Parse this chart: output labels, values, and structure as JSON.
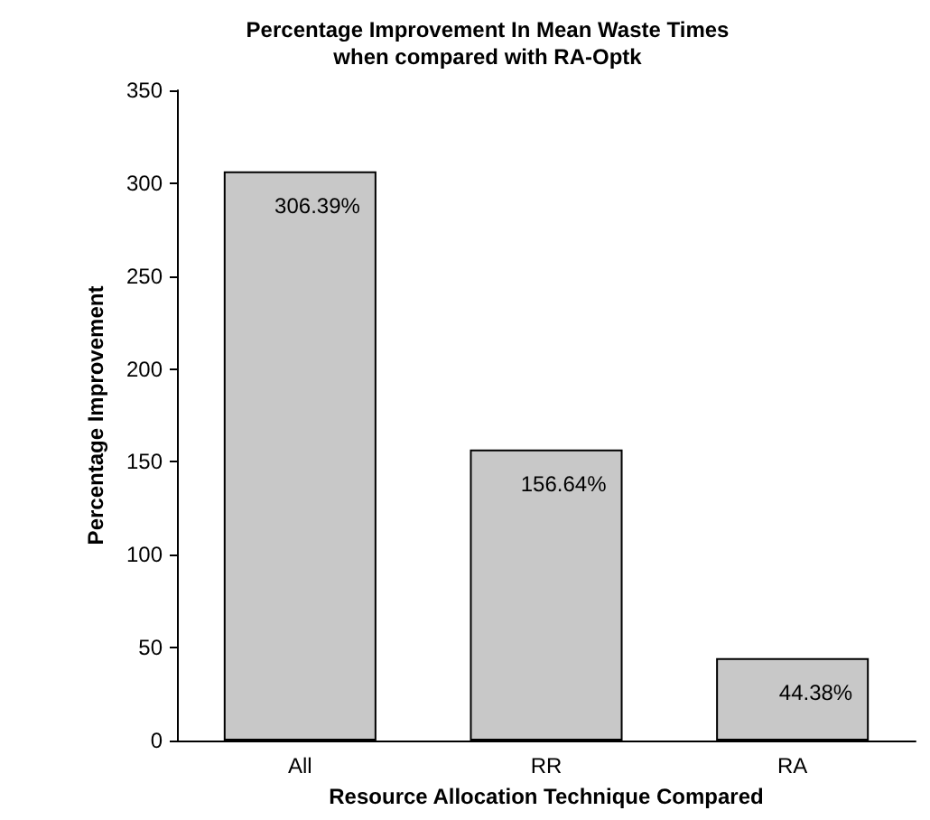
{
  "chart_data": {
    "type": "bar",
    "title": "Percentage Improvement In Mean Waste Times\nwhen compared with RA-Optk",
    "xlabel": "Resource Allocation Technique Compared",
    "ylabel": "Percentage Improvement",
    "categories": [
      "All",
      "RR",
      "RA"
    ],
    "values": [
      306.39,
      156.64,
      44.38
    ],
    "value_labels": [
      "306.39%",
      "156.64%",
      "44.38%"
    ],
    "color": "#c8c8c8",
    "ylim": [
      0,
      350
    ],
    "yticks": [
      0,
      50,
      100,
      150,
      200,
      250,
      300,
      350
    ],
    "grid": false
  }
}
